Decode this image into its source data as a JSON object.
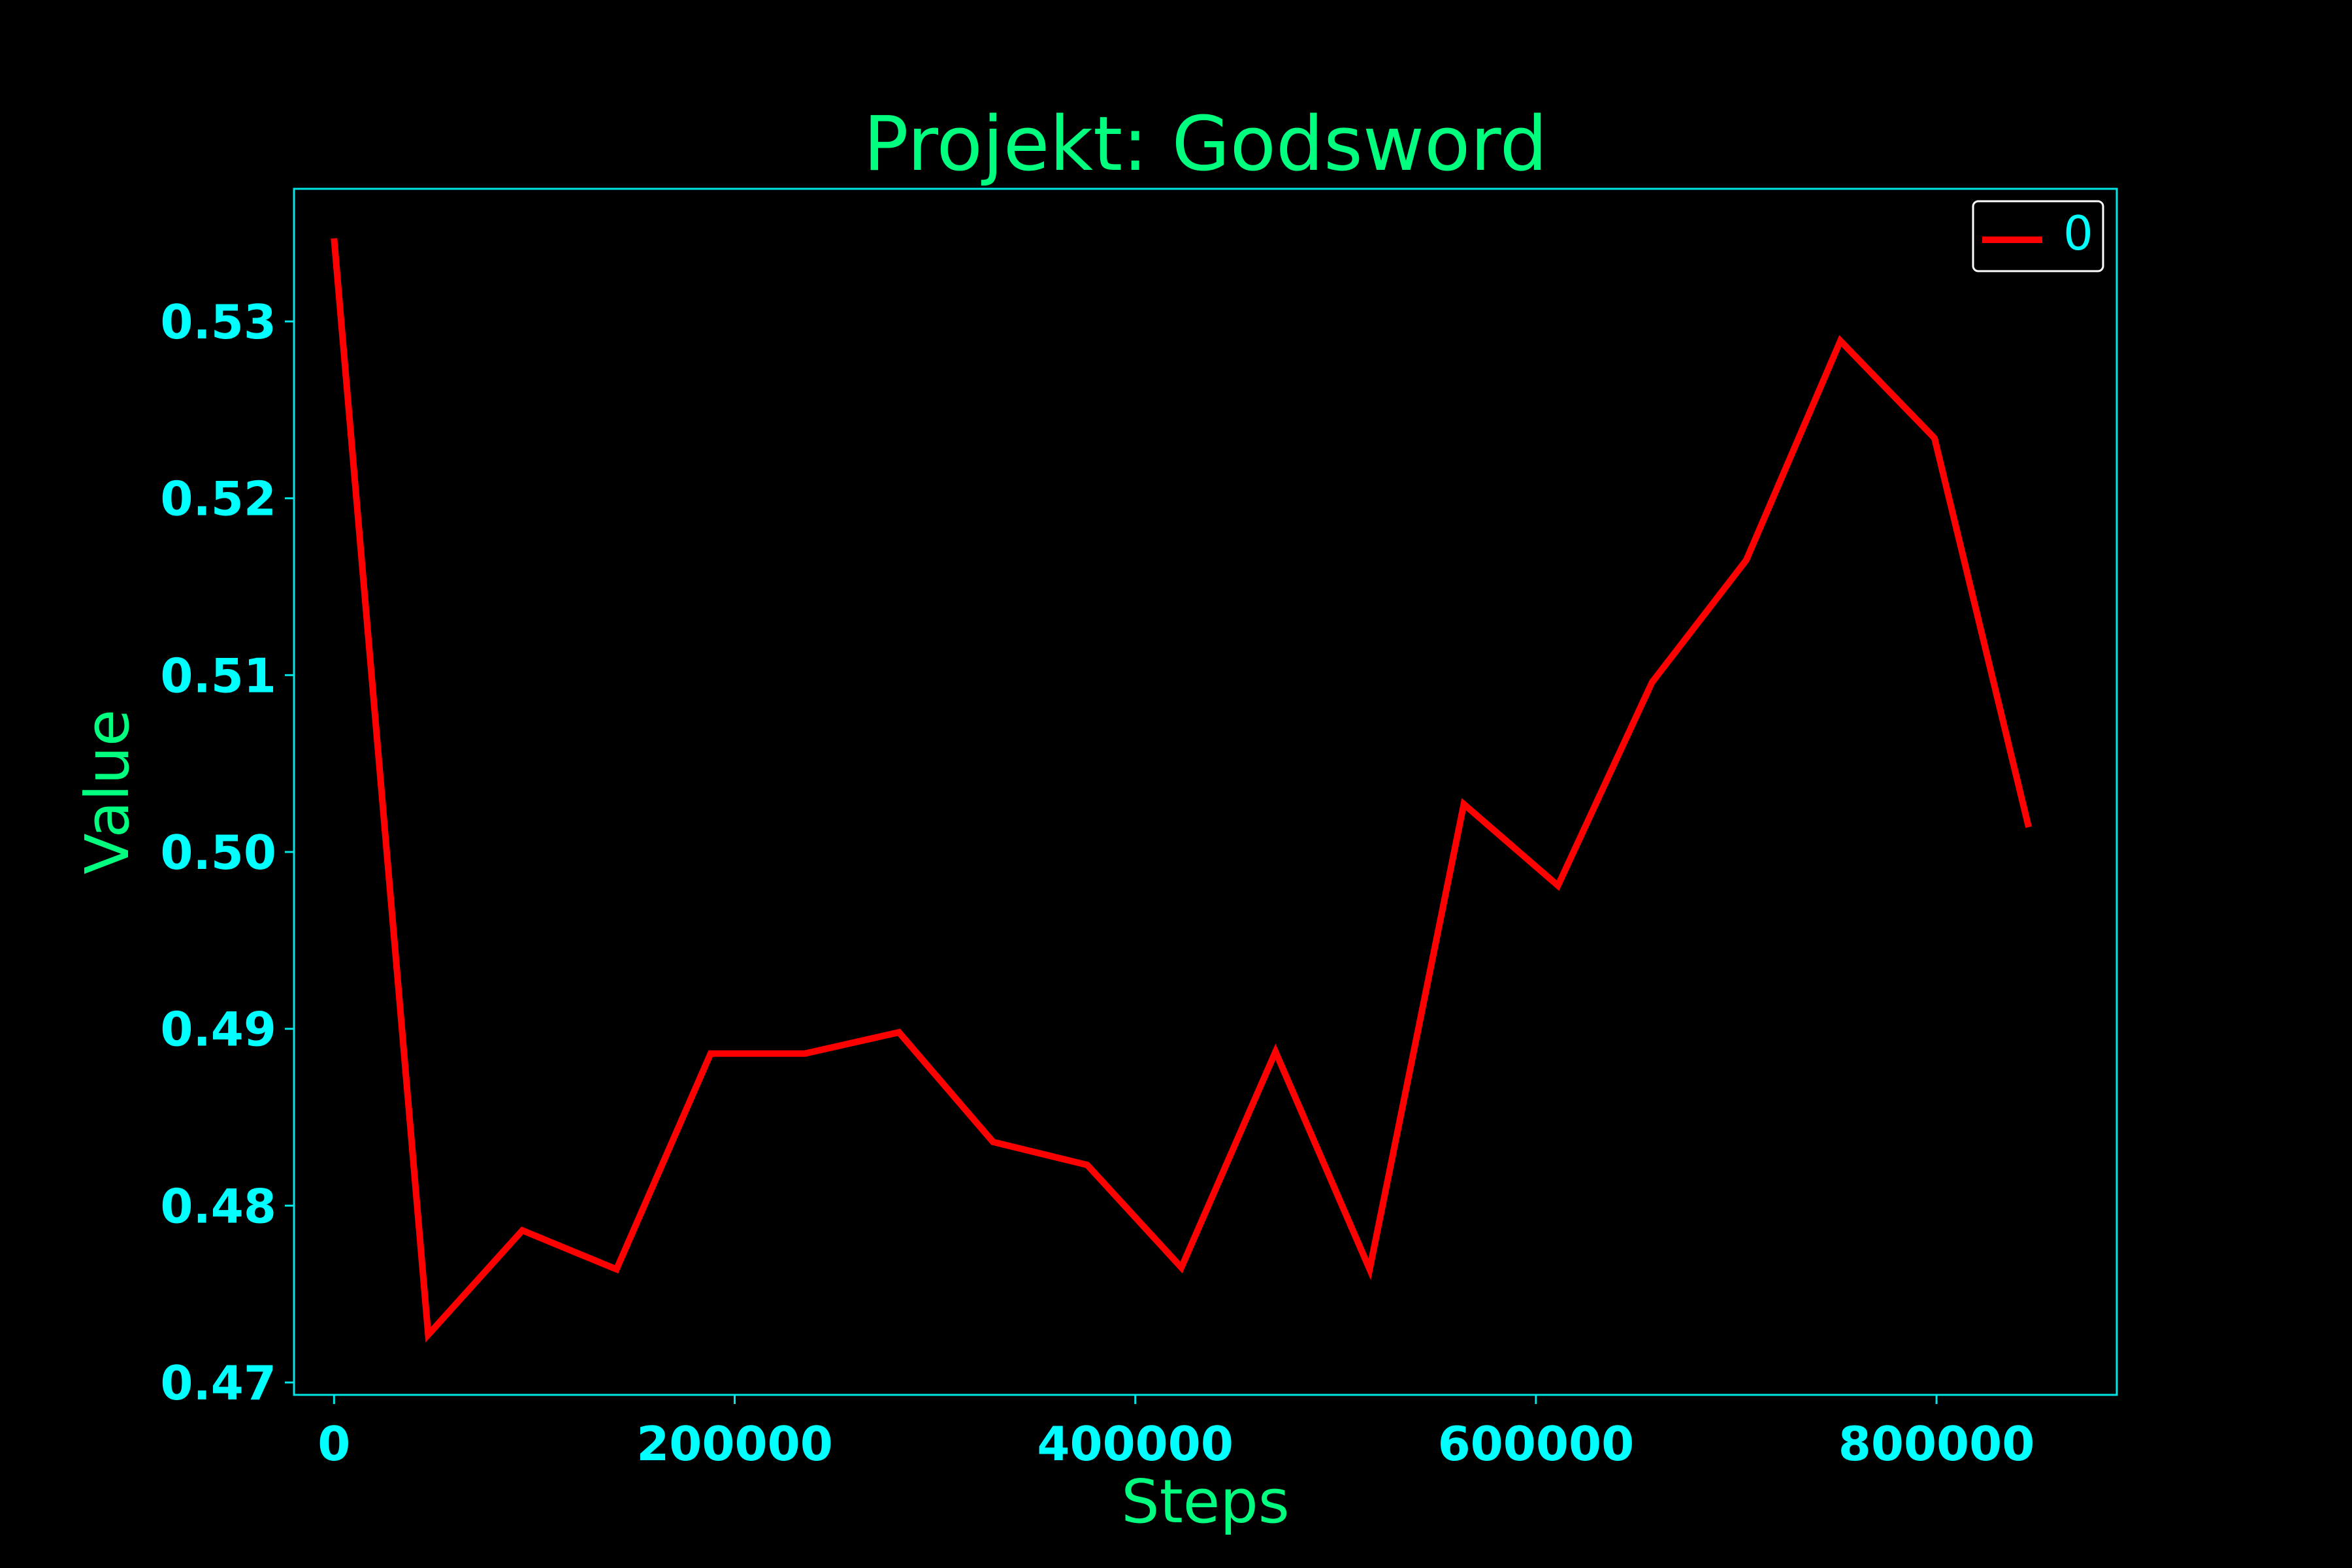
{
  "colors": {
    "background": "#000000",
    "axes_frame": "#00e5e5",
    "tick_label": "#00ffff",
    "title": "#00ff7f",
    "axis_label": "#00ff7f",
    "series_line": "#ff0000",
    "legend_text": "#00ffff",
    "legend_frame": "#ffffff"
  },
  "chart_data": {
    "type": "line",
    "title": "Projekt: Godsword",
    "xlabel": "Steps",
    "ylabel": "Value",
    "xlim": [
      -20000,
      890000
    ],
    "ylim": [
      0.4693,
      0.5375
    ],
    "xticks": [
      0,
      200000,
      400000,
      600000,
      800000
    ],
    "xtick_labels": [
      "0",
      "200000",
      "400000",
      "600000",
      "800000"
    ],
    "yticks": [
      0.47,
      0.48,
      0.49,
      0.5,
      0.51,
      0.52,
      0.53
    ],
    "ytick_labels": [
      "0.47",
      "0.48",
      "0.49",
      "0.50",
      "0.51",
      "0.52",
      "0.53"
    ],
    "grid": false,
    "legend": {
      "position": "top-right",
      "entries": [
        "0"
      ]
    },
    "series": [
      {
        "name": "0",
        "color": "#ff0000",
        "x": [
          0,
          47000,
          94000,
          141000,
          188000,
          235000,
          282000,
          329000,
          376000,
          423000,
          470000,
          517000,
          564000,
          611000,
          658000,
          705000,
          752000,
          799000,
          846000
        ],
        "y": [
          0.5347,
          0.4727,
          0.4786,
          0.4764,
          0.4886,
          0.4886,
          0.4898,
          0.4836,
          0.4823,
          0.4765,
          0.4887,
          0.4764,
          0.5027,
          0.4981,
          0.5096,
          0.5165,
          0.5289,
          0.5234,
          0.5014
        ]
      }
    ]
  }
}
